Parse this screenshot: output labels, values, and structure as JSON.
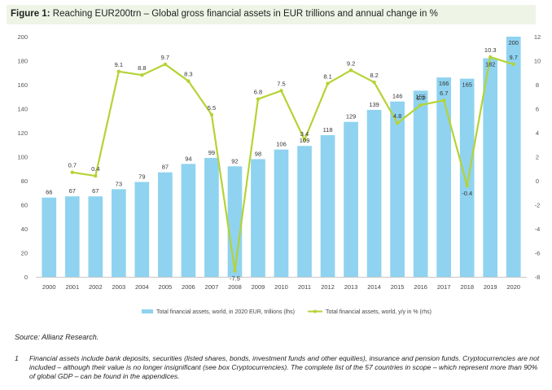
{
  "figure": {
    "label": "Figure 1:",
    "title": "Reaching EUR200trn – Global gross financial assets in EUR trillions and annual change in %"
  },
  "chart_data": {
    "type": "bar+line",
    "categories": [
      "2000",
      "2001",
      "2002",
      "2003",
      "2004",
      "2005",
      "2006",
      "2007",
      "2008",
      "2009",
      "2010",
      "2011",
      "2012",
      "2013",
      "2014",
      "2015",
      "2016",
      "2017",
      "2018",
      "2019",
      "2020"
    ],
    "series": [
      {
        "name": "Total financial assets, world, in 2020 EUR, trillions (lhs)",
        "kind": "bar",
        "axis": "left",
        "color": "#8fd3f0",
        "values": [
          66,
          67,
          67,
          73,
          79,
          87,
          94,
          99,
          92,
          98,
          106,
          109,
          118,
          129,
          139,
          146,
          155,
          166,
          165,
          182,
          200
        ]
      },
      {
        "name": "Total financial assets, world, y/y in % (rhs)",
        "kind": "line",
        "axis": "right",
        "color": "#b5d335",
        "values": [
          null,
          0.7,
          0.4,
          9.1,
          8.8,
          9.7,
          8.3,
          5.5,
          -7.5,
          6.8,
          7.5,
          3.4,
          8.1,
          9.2,
          8.2,
          4.8,
          6.3,
          6.7,
          -0.4,
          10.3,
          9.7
        ]
      }
    ],
    "left_axis": {
      "min": 0,
      "max": 200,
      "ticks": [
        0,
        20,
        40,
        60,
        80,
        100,
        120,
        140,
        160,
        180,
        200
      ]
    },
    "right_axis": {
      "min": -8,
      "max": 12,
      "ticks": [
        -8,
        -6,
        -4,
        -2,
        0,
        2,
        4,
        6,
        8,
        10,
        12
      ]
    },
    "grid": false,
    "legend_position": "bottom"
  },
  "source": "Source: Allianz Research.",
  "footnote": {
    "number": "1",
    "text": "Financial assets include bank deposits, securities (listed shares, bonds, investment funds and other equities), insurance and pension funds. Cryptocurrencies are not included – although their value is no longer insignificant (see box Cryptocurrencies). The complete list of the 57 countries in scope – which represent more than 90% of global GDP – can be found in the appendices."
  }
}
